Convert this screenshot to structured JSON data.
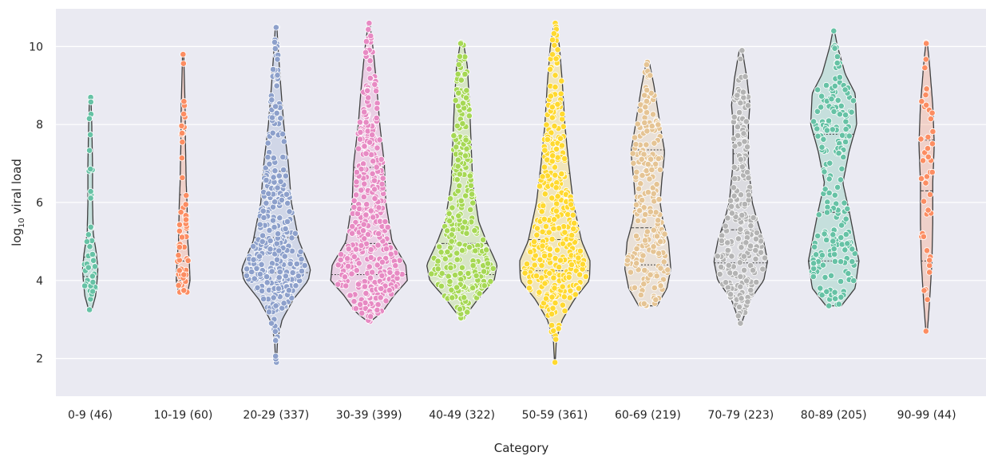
{
  "chart_data": {
    "type": "violin",
    "xlabel": "Category",
    "ylabel_main": "log",
    "ylabel_sub": "10",
    "ylabel_rest": " viral load",
    "ylim": [
      1.0,
      10.8
    ],
    "yticks": [
      2,
      4,
      6,
      8,
      10
    ],
    "grid": true,
    "background": "#eaeaf2",
    "categories": [
      {
        "label": "0-9 (46)",
        "n": 46,
        "min": 3.25,
        "max": 8.7,
        "q1": 4.1,
        "median": 4.3,
        "q3": 4.6,
        "color": "#66c2a5",
        "shape": [
          [
            3.25,
            0.02
          ],
          [
            3.6,
            0.07
          ],
          [
            4.0,
            0.09
          ],
          [
            4.3,
            0.1
          ],
          [
            4.7,
            0.08
          ],
          [
            5.2,
            0.04
          ],
          [
            6.0,
            0.03
          ],
          [
            7.0,
            0.03
          ],
          [
            8.0,
            0.02
          ],
          [
            8.7,
            0.01
          ]
        ]
      },
      {
        "label": "10-19 (60)",
        "n": 60,
        "min": 3.7,
        "max": 9.8,
        "q1": 4.0,
        "median": 4.5,
        "q3": 6.2,
        "color": "#fc8d62",
        "shape": [
          [
            3.7,
            0.06
          ],
          [
            4.0,
            0.09
          ],
          [
            4.5,
            0.08
          ],
          [
            5.0,
            0.06
          ],
          [
            6.0,
            0.05
          ],
          [
            6.5,
            0.04
          ],
          [
            7.5,
            0.03
          ],
          [
            8.5,
            0.025
          ],
          [
            9.2,
            0.015
          ],
          [
            9.8,
            0.008
          ]
        ]
      },
      {
        "label": "20-29 (337)",
        "n": 337,
        "min": 1.9,
        "max": 10.5,
        "q1": 4.2,
        "median": 5.1,
        "q3": 6.8,
        "color": "#8da0cb",
        "shape": [
          [
            1.9,
            0.005
          ],
          [
            2.5,
            0.02
          ],
          [
            3.0,
            0.08
          ],
          [
            3.5,
            0.22
          ],
          [
            4.0,
            0.42
          ],
          [
            4.3,
            0.45
          ],
          [
            5.0,
            0.3
          ],
          [
            6.0,
            0.2
          ],
          [
            7.0,
            0.16
          ],
          [
            8.0,
            0.1
          ],
          [
            9.0,
            0.06
          ],
          [
            10.0,
            0.025
          ],
          [
            10.5,
            0.01
          ]
        ]
      },
      {
        "label": "30-39 (399)",
        "n": 399,
        "min": 2.95,
        "max": 10.6,
        "q1": 4.15,
        "median": 4.95,
        "q3": 6.9,
        "color": "#e78ac3",
        "shape": [
          [
            2.95,
            0.02
          ],
          [
            3.2,
            0.18
          ],
          [
            3.6,
            0.32
          ],
          [
            4.0,
            0.5
          ],
          [
            4.4,
            0.48
          ],
          [
            5.0,
            0.3
          ],
          [
            6.0,
            0.22
          ],
          [
            7.0,
            0.2
          ],
          [
            8.0,
            0.14
          ],
          [
            9.0,
            0.1
          ],
          [
            10.0,
            0.05
          ],
          [
            10.6,
            0.01
          ]
        ]
      },
      {
        "label": "40-49 (322)",
        "n": 322,
        "min": 3.05,
        "max": 10.1,
        "q1": 4.15,
        "median": 4.95,
        "q3": 6.7,
        "color": "#a6d854",
        "shape": [
          [
            3.05,
            0.03
          ],
          [
            3.5,
            0.2
          ],
          [
            4.0,
            0.42
          ],
          [
            4.4,
            0.46
          ],
          [
            5.0,
            0.32
          ],
          [
            5.5,
            0.22
          ],
          [
            6.5,
            0.14
          ],
          [
            7.5,
            0.12
          ],
          [
            8.5,
            0.1
          ],
          [
            9.5,
            0.07
          ],
          [
            10.1,
            0.02
          ]
        ]
      },
      {
        "label": "50-59 (361)",
        "n": 361,
        "min": 1.9,
        "max": 10.6,
        "q1": 4.25,
        "median": 5.05,
        "q3": 6.75,
        "color": "#ffd92f",
        "shape": [
          [
            1.9,
            0.005
          ],
          [
            2.5,
            0.02
          ],
          [
            3.0,
            0.1
          ],
          [
            3.5,
            0.25
          ],
          [
            4.0,
            0.45
          ],
          [
            4.5,
            0.46
          ],
          [
            5.0,
            0.35
          ],
          [
            6.0,
            0.24
          ],
          [
            7.0,
            0.18
          ],
          [
            8.0,
            0.13
          ],
          [
            9.0,
            0.1
          ],
          [
            10.0,
            0.06
          ],
          [
            10.6,
            0.01
          ]
        ]
      },
      {
        "label": "60-69 (219)",
        "n": 219,
        "min": 3.35,
        "max": 9.6,
        "q1": 4.4,
        "median": 5.35,
        "q3": 7.35,
        "color": "#e5c494",
        "shape": [
          [
            3.35,
            0.12
          ],
          [
            3.8,
            0.25
          ],
          [
            4.3,
            0.3
          ],
          [
            5.0,
            0.27
          ],
          [
            5.5,
            0.2
          ],
          [
            6.0,
            0.16
          ],
          [
            6.5,
            0.18
          ],
          [
            7.3,
            0.22
          ],
          [
            8.0,
            0.16
          ],
          [
            9.0,
            0.08
          ],
          [
            9.6,
            0.02
          ]
        ]
      },
      {
        "label": "70-79 (223)",
        "n": 223,
        "min": 2.9,
        "max": 9.9,
        "q1": 4.45,
        "median": 5.3,
        "q3": 7.25,
        "color": "#b3b3b3",
        "shape": [
          [
            2.9,
            0.01
          ],
          [
            3.5,
            0.12
          ],
          [
            4.0,
            0.3
          ],
          [
            4.5,
            0.35
          ],
          [
            5.0,
            0.3
          ],
          [
            5.5,
            0.22
          ],
          [
            6.0,
            0.15
          ],
          [
            7.0,
            0.1
          ],
          [
            8.0,
            0.1
          ],
          [
            8.5,
            0.12
          ],
          [
            9.2,
            0.08
          ],
          [
            9.9,
            0.02
          ]
        ]
      },
      {
        "label": "80-89 (205)",
        "n": 205,
        "min": 3.35,
        "max": 10.4,
        "q1": 4.5,
        "median": 5.75,
        "q3": 7.75,
        "color": "#66c2a5",
        "shape": [
          [
            3.35,
            0.1
          ],
          [
            3.8,
            0.28
          ],
          [
            4.5,
            0.33
          ],
          [
            5.0,
            0.28
          ],
          [
            5.8,
            0.2
          ],
          [
            6.5,
            0.12
          ],
          [
            7.3,
            0.2
          ],
          [
            8.0,
            0.3
          ],
          [
            8.8,
            0.28
          ],
          [
            9.3,
            0.15
          ],
          [
            10.0,
            0.05
          ],
          [
            10.4,
            0.01
          ]
        ]
      },
      {
        "label": "90-99 (44)",
        "n": 44,
        "min": 2.7,
        "max": 10.1,
        "q1": 4.5,
        "median": 6.3,
        "q3": 7.6,
        "color": "#fc8d62",
        "shape": [
          [
            2.7,
            0.01
          ],
          [
            3.5,
            0.04
          ],
          [
            4.5,
            0.07
          ],
          [
            5.5,
            0.08
          ],
          [
            6.5,
            0.08
          ],
          [
            7.5,
            0.1
          ],
          [
            8.5,
            0.08
          ],
          [
            9.5,
            0.04
          ],
          [
            10.1,
            0.01
          ]
        ]
      }
    ]
  }
}
